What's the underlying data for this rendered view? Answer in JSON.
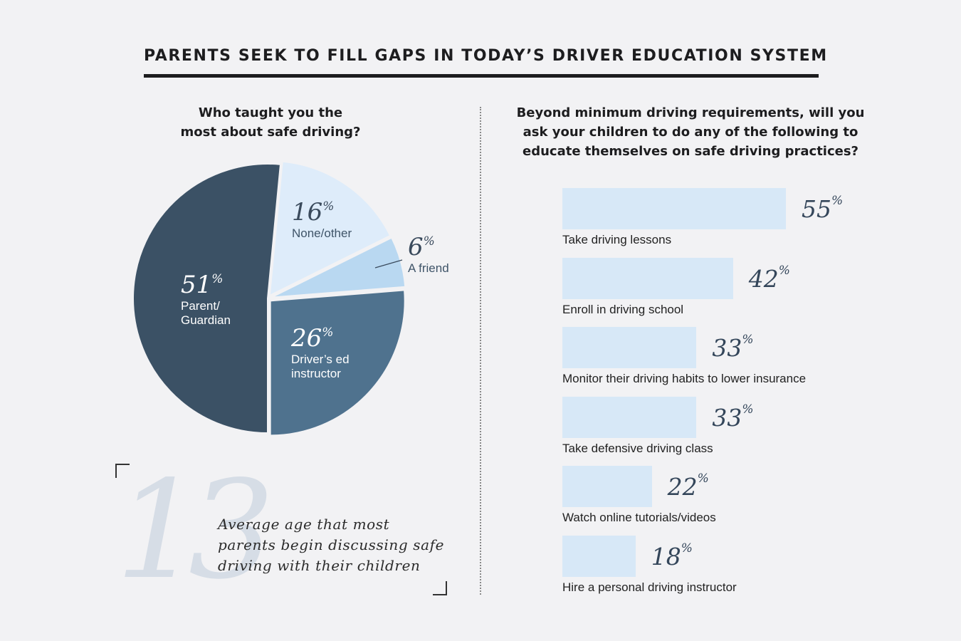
{
  "title": "PARENTS SEEK TO FILL GAPS IN TODAY’S DRIVER EDUCATION SYSTEM",
  "left_question": [
    "Who taught you the",
    "most about safe driving?"
  ],
  "right_question": [
    "Beyond minimum driving requirements, will you",
    "ask your children to do any of the following to",
    "educate themselves on safe driving practices?"
  ],
  "percent_sign": "%",
  "stat": {
    "number": "13",
    "text": "Average age that most parents begin discussing safe driving with their children"
  },
  "chart_data": [
    {
      "type": "pie",
      "title": "Who taught you the most about safe driving?",
      "slices": [
        {
          "label": "Parent/ Guardian",
          "label_lines": [
            "Parent/",
            "Guardian"
          ],
          "value": 51,
          "color": "#3b5165"
        },
        {
          "label": "None/other",
          "label_lines": [
            "None/other"
          ],
          "value": 16,
          "color": "#deecfa"
        },
        {
          "label": "A friend",
          "label_lines": [
            "A friend"
          ],
          "value": 6,
          "color": "#b9d8f1"
        },
        {
          "label": "Driver’s ed instructor",
          "label_lines": [
            "Driver’s ed",
            "instructor"
          ],
          "value": 26,
          "color": "#4f728e"
        }
      ]
    },
    {
      "type": "bar",
      "orientation": "horizontal",
      "title": "Beyond minimum driving requirements, will you ask your children to do any of the following to educate themselves on safe driving practices?",
      "bar_color": "#d7e8f7",
      "categories": [
        "Take driving lessons",
        "Enroll in driving school",
        "Monitor their driving habits to lower insurance",
        "Take defensive driving class",
        "Watch online tutorials/videos",
        "Hire a personal driving instructor"
      ],
      "values": [
        55,
        42,
        33,
        33,
        22,
        18
      ]
    }
  ]
}
